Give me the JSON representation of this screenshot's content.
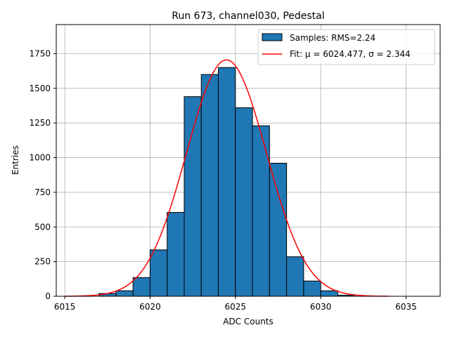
{
  "chart_data": {
    "type": "bar",
    "title": "Run 673, channel030, Pedestal",
    "xlabel": "ADC Counts",
    "ylabel": "Entries",
    "xlim": [
      2014.5,
      2037.0
    ],
    "ylim": [
      0,
      1960
    ],
    "xticks": [
      6015,
      6020,
      6025,
      6030,
      6035
    ],
    "yticks": [
      0,
      250,
      500,
      750,
      1000,
      1250,
      1500,
      1750
    ],
    "grid": true,
    "legend_position": "top-right",
    "colors": {
      "bar": "#1f77b4",
      "bar_edge": "#000000",
      "fit": "#ff0000",
      "grid": "#b0b0b0"
    },
    "histogram": {
      "bin_edges": [
        6017,
        6018,
        6019,
        6020,
        6021,
        6022,
        6023,
        6024,
        6025,
        6026,
        6027,
        6028,
        6029,
        6030,
        6031,
        6032
      ],
      "counts": [
        20,
        40,
        135,
        335,
        605,
        1440,
        1600,
        1650,
        1360,
        1230,
        960,
        285,
        110,
        40,
        8
      ]
    },
    "fit": {
      "mu": 6024.477,
      "sigma": 2.344,
      "amplitude": 1705,
      "x_range": [
        6015,
        6034
      ]
    },
    "legend": [
      {
        "label": "Samples: RMS=2.24",
        "kind": "patch"
      },
      {
        "label": "Fit: μ = 6024.477, σ = 2.344",
        "kind": "line"
      }
    ]
  }
}
